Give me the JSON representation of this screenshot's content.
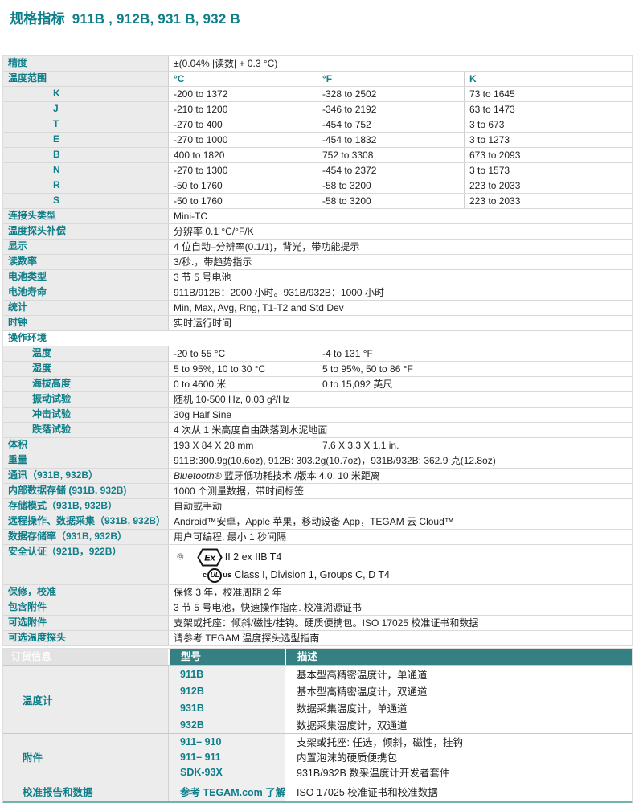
{
  "title": {
    "prefix": "规格指标",
    "models": "911B , 912B, 931 B, 932 B"
  },
  "colors": {
    "accent_teal": "#0f7e89",
    "order_header_bg": "#358083",
    "label_cell_bg": "#ebebeb",
    "row_border": "#d9d9d9",
    "bottom_rule": "#72b3ab"
  },
  "spec_rows": [
    {
      "label": "精度",
      "cells": [
        {
          "t": "±(0.04% |读数| + 0.3 °C)"
        }
      ]
    },
    {
      "label": "温度范围",
      "teal": true,
      "cells": [
        {
          "t": "°C"
        },
        {
          "t": "°F"
        },
        {
          "t": "K"
        }
      ]
    },
    {
      "label": "K",
      "ind": "tc",
      "cells": [
        {
          "t": "-200 to 1372"
        },
        {
          "t": "-328 to 2502"
        },
        {
          "t": "73 to 1645"
        }
      ]
    },
    {
      "label": "J",
      "ind": "tc",
      "cells": [
        {
          "t": "-210 to 1200"
        },
        {
          "t": "-346 to 2192"
        },
        {
          "t": "63 to 1473"
        }
      ]
    },
    {
      "label": "T",
      "ind": "tc",
      "cells": [
        {
          "t": "-270 to 400"
        },
        {
          "t": "-454 to 752"
        },
        {
          "t": "3 to 673"
        }
      ]
    },
    {
      "label": "E",
      "ind": "tc",
      "cells": [
        {
          "t": "-270 to 1000"
        },
        {
          "t": "-454 to 1832"
        },
        {
          "t": "3 to 1273"
        }
      ]
    },
    {
      "label": "B",
      "ind": "tc",
      "cells": [
        {
          "t": "400 to 1820"
        },
        {
          "t": "752 to 3308"
        },
        {
          "t": "673 to 2093"
        }
      ]
    },
    {
      "label": "N",
      "ind": "tc",
      "cells": [
        {
          "t": "-270 to 1300"
        },
        {
          "t": "-454 to 2372"
        },
        {
          "t": "3 to 1573"
        }
      ]
    },
    {
      "label": "R",
      "ind": "tc",
      "cells": [
        {
          "t": "-50 to 1760"
        },
        {
          "t": "-58 to 3200"
        },
        {
          "t": "223 to 2033"
        }
      ]
    },
    {
      "label": "S",
      "ind": "tc",
      "cells": [
        {
          "t": "-50 to 1760"
        },
        {
          "t": "-58 to 3200"
        },
        {
          "t": "223 to 2033"
        }
      ]
    },
    {
      "label": "连接头类型",
      "cells": [
        {
          "t": "Mini-TC"
        }
      ]
    },
    {
      "label": "温度探头补偿",
      "cells": [
        {
          "t": "分辨率 0.1 °C/°F/K"
        }
      ]
    },
    {
      "label": "显示",
      "cells": [
        {
          "t": "4 位自动–分辨率(0.1/1)，背光，带功能提示"
        }
      ]
    },
    {
      "label": "读数率",
      "cells": [
        {
          "t": "3/秒.，带趋势指示"
        }
      ]
    },
    {
      "label": "电池类型",
      "cells": [
        {
          "t": "3 节 5 号电池"
        }
      ]
    },
    {
      "label": "电池寿命",
      "cells": [
        {
          "t": "911B/912B：2000 小时。931B/932B：1000 小时"
        }
      ]
    },
    {
      "label": "统计",
      "cells": [
        {
          "t": "Min, Max, Avg, Rng, T1-T2 and Std Dev"
        }
      ]
    },
    {
      "label": "时钟",
      "cells": [
        {
          "t": "实时运行时间"
        }
      ]
    },
    {
      "label": "操作环境",
      "section": true
    },
    {
      "label": "温度",
      "ind": "1",
      "cells": [
        {
          "t": "-20 to 55 °C"
        },
        {
          "t": "-4 to 131 °F"
        }
      ]
    },
    {
      "label": "湿度",
      "ind": "1",
      "cells": [
        {
          "t": "5 to 95%, 10 to 30 °C"
        },
        {
          "t": "5 to 95%, 50 to 86 °F"
        }
      ]
    },
    {
      "label": "海拔高度",
      "ind": "1",
      "cells": [
        {
          "t": "0 to 4600 米"
        },
        {
          "t": "0 to 15,092 英尺"
        }
      ]
    },
    {
      "label": "振动试验",
      "ind": "1",
      "cells": [
        {
          "t": "随机 10-500 Hz, 0.03 g²/Hz"
        }
      ]
    },
    {
      "label": "冲击试验",
      "ind": "1",
      "cells": [
        {
          "t": "30g Half Sine"
        }
      ]
    },
    {
      "label": "跌落试验",
      "ind": "1",
      "cells": [
        {
          "t": "4 次从 1 米高度自由跌落到水泥地面"
        }
      ]
    },
    {
      "label": "体积",
      "cells": [
        {
          "t": "193 X 84 X 28 mm"
        },
        {
          "t": "7.6 X 3.3 X 1.1 in."
        }
      ]
    },
    {
      "label": "重量",
      "cells": [
        {
          "t": "911B:300.9g(10.6oz), 912B: 303.2g(10.7oz)，931B/932B: 362.9 克(12.8oz)"
        }
      ]
    },
    {
      "label": "通讯（931B, 932B）",
      "cells": [
        {
          "em": "Bluetooth®",
          "t": " 蓝牙低功耗技术 /版本 4.0, 10 米距离"
        }
      ]
    },
    {
      "label": "内部数据存储 (931B, 932B)",
      "cells": [
        {
          "t": "1000 个测量数据，带时间标签"
        }
      ]
    },
    {
      "label": "存储模式（931B, 932B）",
      "cells": [
        {
          "t": "自动或手动"
        }
      ]
    },
    {
      "label": "远程操作、数据采集（931B, 932B）",
      "cells": [
        {
          "t": "Android™安卓，Apple 苹果，移动设备 App，TEGAM 云 Cloud™"
        }
      ]
    },
    {
      "label": "数据存储率（931B, 932B）",
      "cells": [
        {
          "t": "用户可编程, 最小 1 秒间隔"
        }
      ]
    },
    {
      "label": "安全认证（921B，922B）",
      "safety": true
    },
    {
      "label": "保修，校准",
      "cells": [
        {
          "t": "保修 3 年，校准周期 2 年"
        }
      ]
    },
    {
      "label": "包含附件",
      "cells": [
        {
          "t": "3 节 5 号电池，快速操作指南. 校准溯源证书"
        }
      ]
    },
    {
      "label": "可选附件",
      "cells": [
        {
          "t": "支架或托座：倾斜/磁性/挂钩。硬质便携包。ISO 17025 校准证书和数据"
        }
      ]
    },
    {
      "label": "可选温度探头",
      "cells": [
        {
          "t": "请参考 TEGAM 温度探头选型指南"
        }
      ]
    }
  ],
  "safety": {
    "cert_mark": "◎",
    "ex_label": "Ex",
    "atex_text": "II 2 ex IIB T4",
    "ul_prefix": "c",
    "ul_label": "UL",
    "ul_suffix": "us",
    "ul_text": "Class I, Division 1, Groups C, D T4"
  },
  "order_table": {
    "headers": [
      "订货信息",
      "型号",
      "描述"
    ],
    "groups": [
      {
        "label": "温度计",
        "items": [
          {
            "model": "911B",
            "desc": "基本型高精密温度计，单通道"
          },
          {
            "model": "912B",
            "desc": "基本型高精密温度计，双通道"
          },
          {
            "model": "931B",
            "desc": "数据采集温度计，单通道"
          },
          {
            "model": "932B",
            "desc": "数据采集温度计，双通道"
          }
        ]
      },
      {
        "label": "附件",
        "items": [
          {
            "model": "911– 910",
            "desc": "支架或托座: 任选，倾斜，磁性，挂钩"
          },
          {
            "model": "911– 911",
            "desc": "内置泡沫的硬质便携包"
          },
          {
            "model": "SDK-93X",
            "desc": "931B/932B 数采温度计开发者套件"
          }
        ]
      },
      {
        "label": "校准报告和数据",
        "items": [
          {
            "model": "参考 TEGAM.com 了解",
            "desc": "ISO 17025 校准证书和校准数据"
          }
        ]
      }
    ]
  }
}
